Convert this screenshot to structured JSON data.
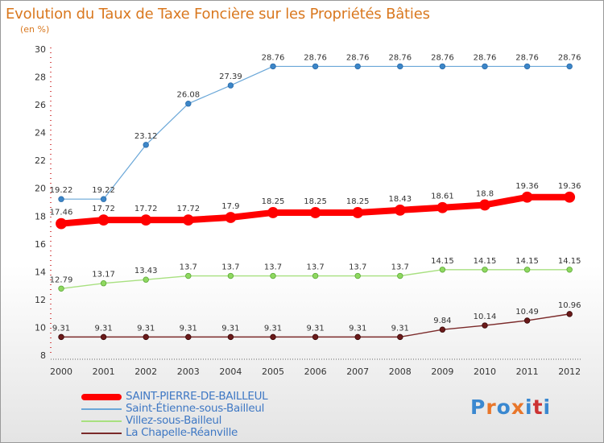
{
  "chart_data": {
    "type": "line",
    "title": "Evolution du Taux de Taxe Foncière sur les Propriétés Bâties",
    "subtitle": "(en %)",
    "x": [
      "2000",
      "2001",
      "2002",
      "2003",
      "2004",
      "2005",
      "2006",
      "2007",
      "2008",
      "2009",
      "2010",
      "2011",
      "2012"
    ],
    "yticks": [
      8,
      10,
      12,
      14,
      16,
      18,
      20,
      22,
      24,
      26,
      28,
      30
    ],
    "ylim": [
      8,
      30
    ],
    "grid": false,
    "series": [
      {
        "name": "SAINT-PIERRE-DE-BAILLEUL",
        "color": "#ff0000",
        "labels": [
          "17.46",
          "17.72",
          "17.72",
          "17.72",
          "17.9",
          "18.25",
          "18.25",
          "18.25",
          "18.43",
          "18.61",
          "18.8",
          "19.36",
          "19.36"
        ],
        "values": [
          17.46,
          17.72,
          17.72,
          17.72,
          17.9,
          18.25,
          18.25,
          18.25,
          18.43,
          18.61,
          18.8,
          19.36,
          19.36
        ]
      },
      {
        "name": "Saint-Étienne-sous-Bailleul",
        "color": "#6aa7d8",
        "labels": [
          "19.22",
          "19.22",
          "23.12",
          "26.08",
          "27.39",
          "28.76",
          "28.76",
          "28.76",
          "28.76",
          "28.76",
          "28.76",
          "28.76",
          "28.76"
        ],
        "values": [
          19.22,
          19.22,
          23.12,
          26.08,
          27.39,
          28.76,
          28.76,
          28.76,
          28.76,
          28.76,
          28.76,
          28.76,
          28.76
        ]
      },
      {
        "name": "Villez-sous-Bailleul",
        "color": "#a8e080",
        "labels": [
          "12.79",
          "13.17",
          "13.43",
          "13.7",
          "13.7",
          "13.7",
          "13.7",
          "13.7",
          "13.7",
          "14.15",
          "14.15",
          "14.15",
          "14.15"
        ],
        "values": [
          12.79,
          13.17,
          13.43,
          13.7,
          13.7,
          13.7,
          13.7,
          13.7,
          13.7,
          14.15,
          14.15,
          14.15,
          14.15
        ]
      },
      {
        "name": "La Chapelle-Réanville",
        "color": "#7b2a2a",
        "labels": [
          "9.31",
          "9.31",
          "9.31",
          "9.31",
          "9.31",
          "9.31",
          "9.31",
          "9.31",
          "9.31",
          "9.84",
          "10.14",
          "10.49",
          "10.96"
        ],
        "values": [
          9.31,
          9.31,
          9.31,
          9.31,
          9.31,
          9.31,
          9.31,
          9.31,
          9.31,
          9.84,
          10.14,
          10.49,
          10.96
        ]
      }
    ]
  },
  "logo": {
    "text": "Proxiti",
    "colors": [
      "#3a88d0",
      "#e8762a",
      "#3a88d0",
      "#e8762a",
      "#3a88d0",
      "#cc3333",
      "#3a88d0"
    ]
  }
}
